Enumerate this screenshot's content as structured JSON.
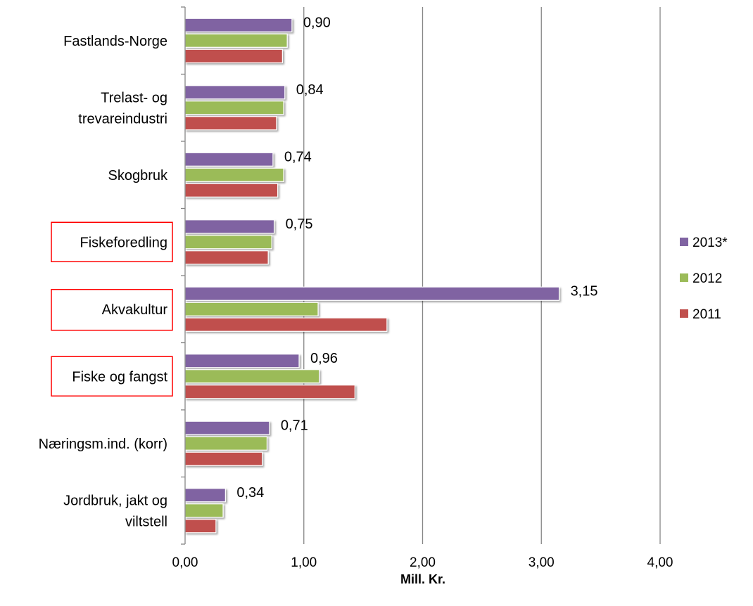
{
  "chart_data": {
    "type": "bar",
    "orientation": "horizontal",
    "categories": [
      "Fastlands-Norge",
      "Trelast- og trevareindustri",
      "Skogbruk",
      "Fiskeforedling",
      "Akvakultur",
      "Fiske og fangst",
      "Næringsm.ind. (korr)",
      "Jordbruk, jakt og viltstell"
    ],
    "category_lines": [
      [
        "Fastlands-Norge"
      ],
      [
        "Trelast- og",
        "trevareindustri"
      ],
      [
        "Skogbruk"
      ],
      [
        "Fiskeforedling"
      ],
      [
        "Akvakultur"
      ],
      [
        "Fiske og fangst"
      ],
      [
        "Næringsm.ind. (korr)"
      ],
      [
        "Jordbruk, jakt og",
        "viltstell"
      ]
    ],
    "highlighted_categories": [
      "Fiskeforedling",
      "Akvakultur",
      "Fiske og fangst"
    ],
    "series": [
      {
        "name": "2013*",
        "color": "#8064a2",
        "values": [
          0.9,
          0.84,
          0.74,
          0.75,
          3.15,
          0.96,
          0.71,
          0.34
        ]
      },
      {
        "name": "2012",
        "color": "#9bbb59",
        "values": [
          0.86,
          0.83,
          0.83,
          0.73,
          1.12,
          1.13,
          0.69,
          0.32
        ]
      },
      {
        "name": "2011",
        "color": "#c0504d",
        "values": [
          0.82,
          0.77,
          0.78,
          0.7,
          1.7,
          1.43,
          0.65,
          0.26
        ]
      }
    ],
    "data_labels": [
      "0,90",
      "0,84",
      "0,74",
      "0,75",
      "3,15",
      "0,96",
      "0,71",
      "0,34"
    ],
    "xticks": [
      0,
      1,
      2,
      3,
      4
    ],
    "xtick_labels": [
      "0,00",
      "1,00",
      "2,00",
      "3,00",
      "4,00"
    ],
    "xlim": [
      0,
      4
    ],
    "xlabel": "Mill. Kr.",
    "ylabel": "",
    "title": "",
    "grid": true,
    "legend_position": "right",
    "highlight_color": "#ff0000"
  }
}
